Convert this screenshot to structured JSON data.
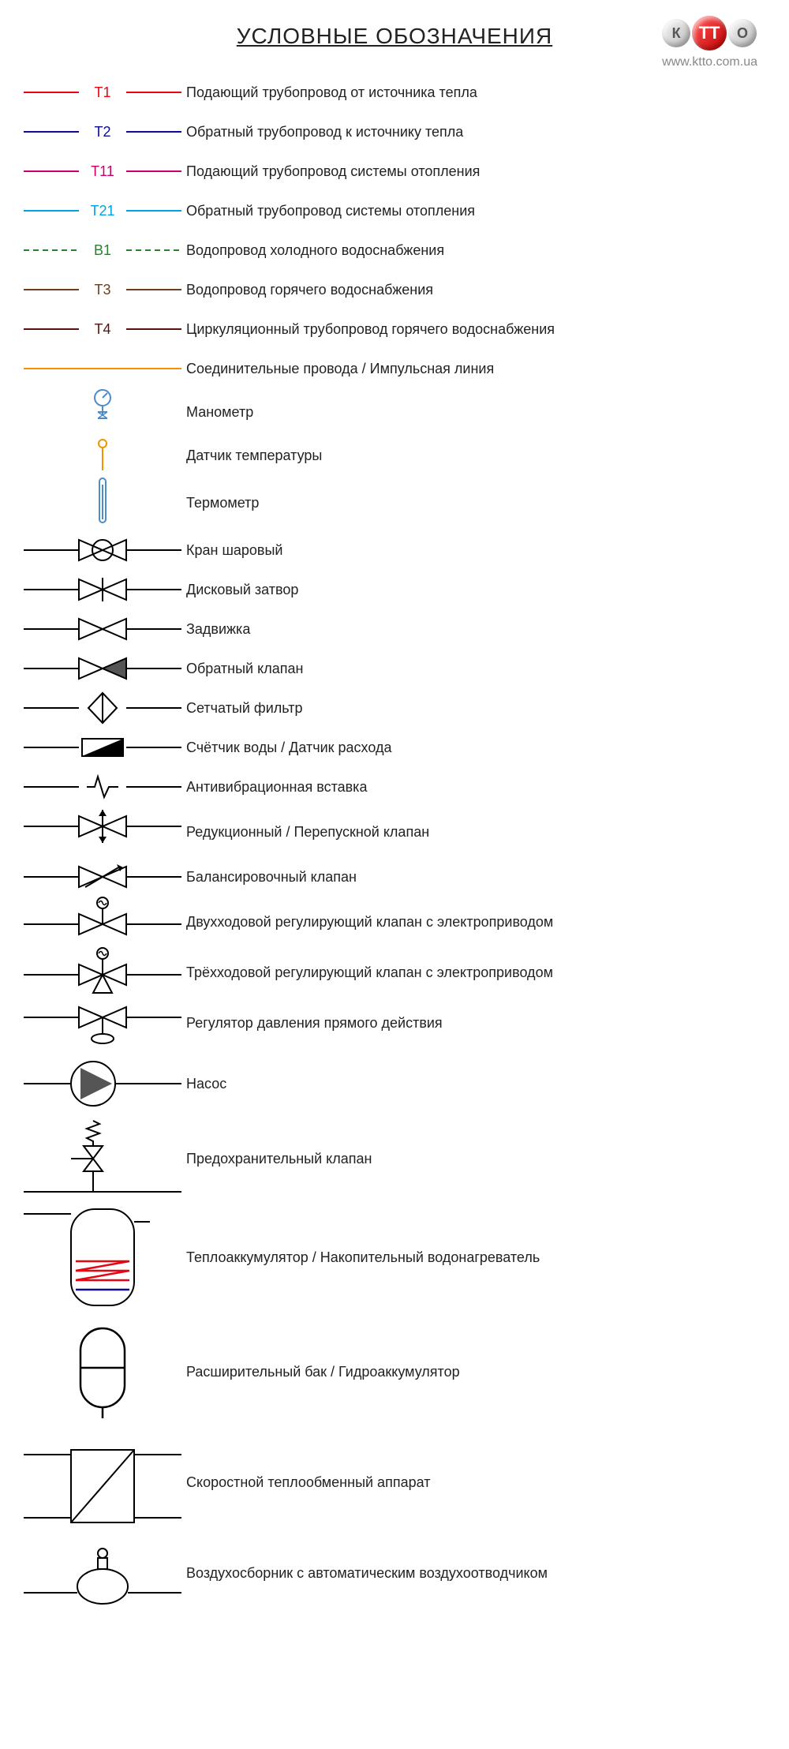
{
  "title": "УСЛОВНЫЕ ОБОЗНАЧЕНИЯ",
  "logo": {
    "k": "К",
    "tt": "ТТ",
    "o": "О",
    "url": "www.ktto.com.ua",
    "url_color": "#999999"
  },
  "stroke": "#000000",
  "lines": [
    {
      "id": "t1",
      "label": "Т1",
      "color": "#E30613",
      "dash": "",
      "desc": "Подающий трубопровод от источника тепла"
    },
    {
      "id": "t2",
      "label": "Т2",
      "color": "#0B0B8F",
      "dash": "",
      "desc": "Обратный трубопровод к источнику тепла"
    },
    {
      "id": "t11",
      "label": "Т11",
      "color": "#C9006B",
      "dash": "",
      "desc": "Подающий трубопровод системы отопления"
    },
    {
      "id": "t21",
      "label": "Т21",
      "color": "#00A3E0",
      "dash": "",
      "desc": "Обратный трубопровод системы отопления"
    },
    {
      "id": "b1",
      "label": "В1",
      "color": "#2E7D32",
      "dash": "7 5",
      "desc": "Водопровод холодного водоснабжения"
    },
    {
      "id": "t3",
      "label": "Т3",
      "color": "#6B3E1F",
      "dash": "",
      "desc": "Водопровод горячего водоснабжения"
    },
    {
      "id": "t4",
      "label": "Т4",
      "color": "#5A1212",
      "dash": "",
      "desc": "Циркуляционный трубопровод горячего водоснабжения"
    },
    {
      "id": "imp",
      "label": "",
      "color": "#F39200",
      "dash": "",
      "desc": "Соединительные провода / Импульсная линия"
    }
  ],
  "sensors": {
    "manometer": {
      "desc": "Манометр",
      "color": "#4C8CC8"
    },
    "tempsensor": {
      "desc": "Датчик температуры",
      "color": "#F39200"
    },
    "thermometer": {
      "desc": "Термометр",
      "color": "#4C8CC8"
    }
  },
  "symbols": [
    {
      "id": "ball-valve",
      "desc": "Кран шаровый"
    },
    {
      "id": "butterfly",
      "desc": "Дисковый затвор"
    },
    {
      "id": "gate-valve",
      "desc": "Задвижка"
    },
    {
      "id": "check-valve",
      "desc": "Обратный клапан",
      "fill": "#555555"
    },
    {
      "id": "strainer",
      "desc": "Сетчатый фильтр"
    },
    {
      "id": "flowmeter",
      "desc": "Счётчик воды / Датчик расхода"
    },
    {
      "id": "expansion-joint",
      "desc": "Антивибрационная вставка"
    },
    {
      "id": "prv",
      "desc": "Редукционный / Перепускной клапан"
    },
    {
      "id": "balancing",
      "desc": "Балансировочный клапан"
    },
    {
      "id": "2way-actuator",
      "desc": "Двухходовой регулирующий клапан с электроприводом"
    },
    {
      "id": "3way-actuator",
      "desc": "Трёхходовой регулирующий клапан с электроприводом"
    },
    {
      "id": "dp-regulator",
      "desc": "Регулятор давления прямого действия"
    }
  ],
  "equipment": {
    "pump": {
      "desc": "Насос"
    },
    "safety": {
      "desc": "Предохранительный клапан"
    },
    "tank": {
      "desc": "Теплоаккумулятор / Накопительный водонагреватель",
      "hot": "#E30613",
      "cold": "#0B0B8F"
    },
    "expvessel": {
      "desc": "Расширительный бак / Гидроаккумулятор"
    },
    "hx": {
      "desc": "Скоростной теплообменный аппарат"
    },
    "airvent": {
      "desc": "Воздухосборник с автоматическим воздухоотводчиком"
    }
  }
}
